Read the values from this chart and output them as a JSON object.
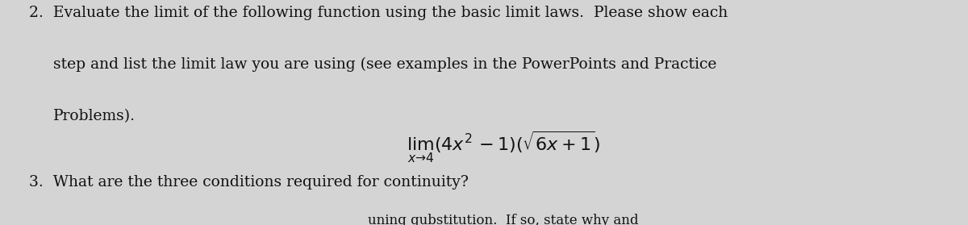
{
  "background_color": "#d4d4d4",
  "text_color": "#111111",
  "fig_width": 12.0,
  "fig_height": 2.79,
  "line1": "2.  Evaluate the limit of the following function using the basic limit laws.  Please show each",
  "line2": "step and list the limit law you are using (see examples in the PowerPoints and Practice",
  "line3": "Problems).",
  "math_expr": "$\\lim_{x \\to 4}(4x^2 - 1)(\\sqrt{6x + 1})$",
  "line4": "3.  What are the three conditions required for continuity?",
  "line5": "uning qubstitution.  If so, state why and",
  "font_size_main": 13.5,
  "font_size_math": 16,
  "font_size_bottom": 12
}
